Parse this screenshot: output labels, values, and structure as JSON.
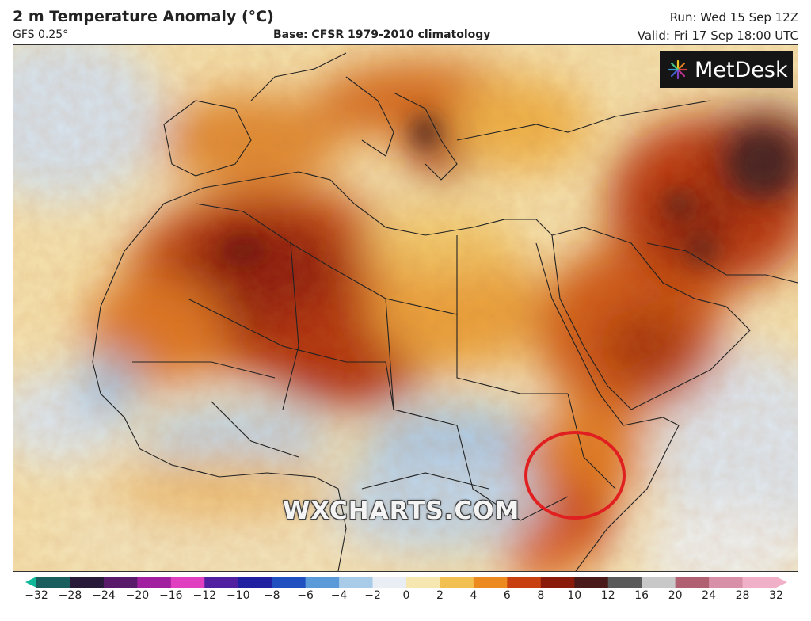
{
  "header": {
    "title": "2 m Temperature Anomaly (°C)",
    "model": "GFS 0.25°",
    "base": "Base: CFSR 1979-2010 climatology",
    "run": "Run: Wed 15 Sep 12Z",
    "valid": "Valid: Fri 17 Sep 18:00 UTC"
  },
  "logo": {
    "text": "MetDesk",
    "icon": "metdesk-starburst-icon"
  },
  "watermark": "WXCHARTS.COM",
  "colorbar": {
    "ticks": [
      "−32",
      "−28",
      "−24",
      "−20",
      "−16",
      "−12",
      "−10",
      "−8",
      "−6",
      "−4",
      "−2",
      "0",
      "2",
      "4",
      "6",
      "8",
      "10",
      "12",
      "16",
      "20",
      "24",
      "28",
      "32"
    ],
    "colors": [
      "#10b89a",
      "#1a5e5e",
      "#2a1a3a",
      "#5a1a6a",
      "#a020a0",
      "#e040c0",
      "#5020a0",
      "#2020a0",
      "#2050c0",
      "#5a9ad8",
      "#a8cce8",
      "#e8eef4",
      "#f6e6b0",
      "#f2c050",
      "#ec8a20",
      "#c84010",
      "#8a1a0a",
      "#4a1a1a",
      "#5a5a5a",
      "#c8c8c8",
      "#b06070",
      "#d890a8",
      "#f0b0c8"
    ]
  },
  "highlight": {
    "color": "#e02020",
    "shape": "circle"
  },
  "colors": {
    "sea_warm": "#f6e4b4",
    "sea_cool": "#dce9f4",
    "land_hot": "#b8380c",
    "border": "#222222"
  }
}
